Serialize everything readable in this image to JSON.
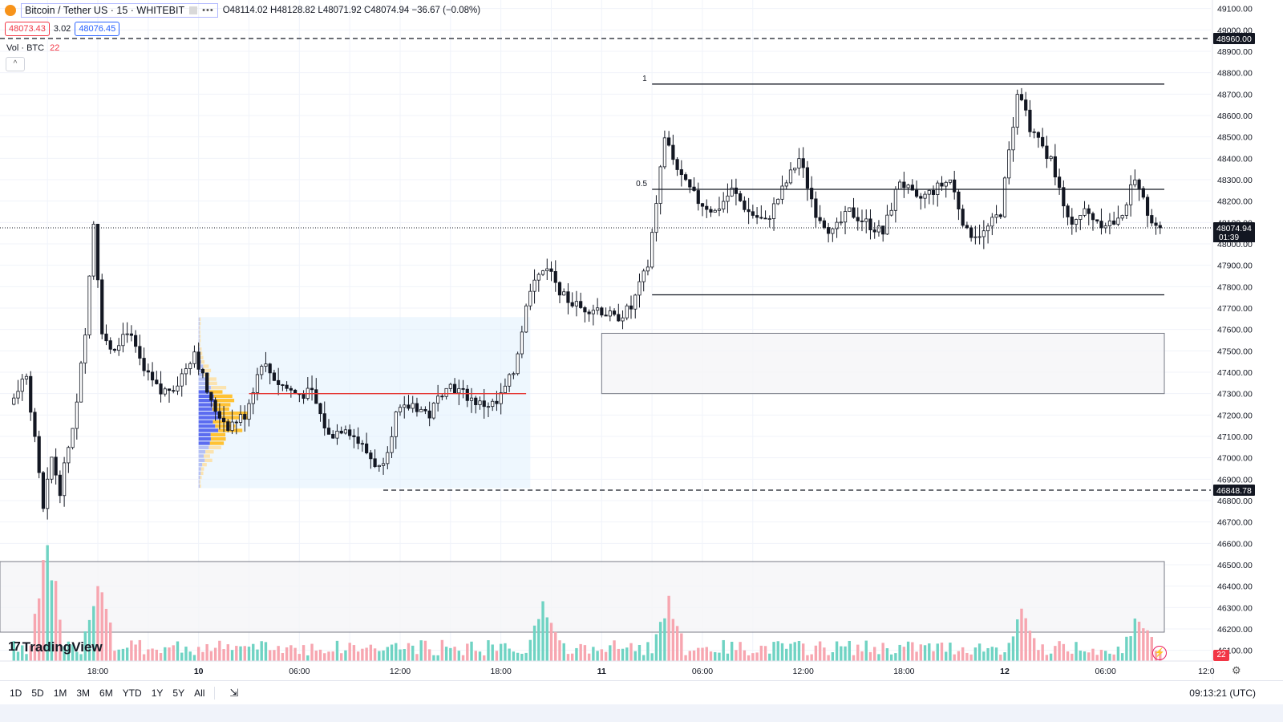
{
  "header": {
    "symbol": "Bitcoin / Tether US · 15 · WHITEBIT",
    "menu_icon": "more-dots-icon",
    "ohlc": "O48114.02 H48128.82 L48071.92 C48074.94 −36.67 (−0.08%)"
  },
  "quotes": {
    "bid": "48073.43",
    "spread": "3.02",
    "ask": "48076.45"
  },
  "volume_indicator": {
    "label": "Vol · BTC",
    "value": "22"
  },
  "price_axis": {
    "ticks": [
      "49100.00",
      "49000.00",
      "48900.00",
      "48800.00",
      "48700.00",
      "48600.00",
      "48500.00",
      "48400.00",
      "48300.00",
      "48200.00",
      "48100.00",
      "48000.00",
      "47900.00",
      "47800.00",
      "47700.00",
      "47600.00",
      "47500.00",
      "47400.00",
      "47300.00",
      "47200.00",
      "47100.00",
      "47000.00",
      "46900.00",
      "46800.00",
      "46700.00",
      "46600.00",
      "46500.00",
      "46400.00",
      "46300.00",
      "46200.00",
      "46100.00"
    ],
    "labels": {
      "top_line": "48960.00",
      "current": "48074.94",
      "countdown": "01:39",
      "low_line": "46848.78"
    }
  },
  "time_axis": {
    "ticks": [
      "18:00",
      "10",
      "06:00",
      "12:00",
      "18:00",
      "11",
      "06:00",
      "12:00",
      "18:00",
      "12",
      "06:00",
      "12:0"
    ]
  },
  "fib_labels": {
    "level_1": "1",
    "level_half": "0.5"
  },
  "volume_badge": "22",
  "bottom_bar": {
    "ranges": [
      "1D",
      "5D",
      "1M",
      "3M",
      "6M",
      "YTD",
      "1Y",
      "5Y",
      "All"
    ],
    "calendar_icon": "calendar-range-icon",
    "clock": "09:13:21 (UTC)"
  },
  "brand": "TradingView",
  "chart_data": {
    "type": "candlestick",
    "title": "Bitcoin / Tether US · 15 · WHITEBIT",
    "interval": "15m",
    "y_range": [
      46050,
      49140
    ],
    "volume_range": [
      0,
      240
    ],
    "grid": true,
    "colors": {
      "up": "#089981",
      "down": "#131722",
      "up_volume": "#6fd3c3",
      "down_volume": "#f7a6b0",
      "profile_up": "#ffc233",
      "profile_down": "#5b6cf0"
    },
    "horizontal_lines": [
      {
        "price": 48960,
        "style": "dashed"
      },
      {
        "price": 46848.78,
        "style": "dashed"
      },
      {
        "price": 48747,
        "style": "solid",
        "fib_level": "1"
      },
      {
        "price": 48255,
        "style": "solid",
        "fib_level": "0.5"
      },
      {
        "price": 47762,
        "style": "solid"
      },
      {
        "price": 48074.94,
        "style": "dotted",
        "label": "last"
      },
      {
        "price": 47300,
        "style": "solid",
        "color": "#e53935",
        "label": "poc"
      }
    ],
    "zones": [
      {
        "price_top": 47582,
        "price_bottom": 47300,
        "from": "11 00:00",
        "to": "12 09:30"
      },
      {
        "price_top": 46515,
        "price_bottom": 46185,
        "from": "09 13:00",
        "to": "12 09:30"
      },
      {
        "price_top": 47658,
        "price_bottom": 46858,
        "from": "10 00:00",
        "to": "10 19:45",
        "type": "volume-profile"
      }
    ],
    "ohlc_path": [
      [
        "09 13:00",
        47250
      ],
      [
        "09 14:00",
        47400
      ],
      [
        "09 15:00",
        46750
      ],
      [
        "09 15:30",
        47000
      ],
      [
        "09 16:00",
        46850
      ],
      [
        "09 17:00",
        47250
      ],
      [
        "09 17:30",
        47600
      ],
      [
        "09 18:00",
        48100
      ],
      [
        "09 18:30",
        47600
      ],
      [
        "09 19:00",
        47500
      ],
      [
        "09 20:00",
        47600
      ],
      [
        "09 21:00",
        47400
      ],
      [
        "09 22:00",
        47300
      ],
      [
        "09 23:00",
        47350
      ],
      [
        "10 00:00",
        47500
      ],
      [
        "10 01:00",
        47250
      ],
      [
        "10 02:00",
        47150
      ],
      [
        "10 03:00",
        47200
      ],
      [
        "10 04:00",
        47450
      ],
      [
        "10 05:00",
        47350
      ],
      [
        "10 06:00",
        47300
      ],
      [
        "10 07:00",
        47300
      ],
      [
        "10 08:00",
        47100
      ],
      [
        "10 09:00",
        47150
      ],
      [
        "10 10:00",
        47050
      ],
      [
        "10 11:00",
        46950
      ],
      [
        "10 11:30",
        47050
      ],
      [
        "10 12:00",
        47200
      ],
      [
        "10 13:00",
        47250
      ],
      [
        "10 14:00",
        47200
      ],
      [
        "10 15:00",
        47350
      ],
      [
        "10 16:00",
        47300
      ],
      [
        "10 17:00",
        47250
      ],
      [
        "10 18:00",
        47250
      ],
      [
        "10 19:00",
        47400
      ],
      [
        "10 20:00",
        47800
      ],
      [
        "10 21:00",
        47900
      ],
      [
        "10 22:00",
        47750
      ],
      [
        "10 23:00",
        47700
      ],
      [
        "11 00:00",
        47700
      ],
      [
        "11 01:00",
        47650
      ],
      [
        "11 02:00",
        47700
      ],
      [
        "11 03:00",
        47900
      ],
      [
        "11 04:00",
        48500
      ],
      [
        "11 05:00",
        48300
      ],
      [
        "11 06:00",
        48200
      ],
      [
        "11 07:00",
        48150
      ],
      [
        "11 08:00",
        48250
      ],
      [
        "11 09:00",
        48150
      ],
      [
        "11 10:00",
        48100
      ],
      [
        "11 11:00",
        48250
      ],
      [
        "11 12:00",
        48400
      ],
      [
        "11 13:00",
        48150
      ],
      [
        "11 14:00",
        48050
      ],
      [
        "11 15:00",
        48150
      ],
      [
        "11 16:00",
        48100
      ],
      [
        "11 17:00",
        48050
      ],
      [
        "11 18:00",
        48300
      ],
      [
        "11 19:00",
        48200
      ],
      [
        "11 20:00",
        48250
      ],
      [
        "11 21:00",
        48300
      ],
      [
        "11 22:00",
        48050
      ],
      [
        "11 23:00",
        48050
      ],
      [
        "12 00:00",
        48150
      ],
      [
        "12 01:00",
        48700
      ],
      [
        "12 02:00",
        48500
      ],
      [
        "12 03:00",
        48400
      ],
      [
        "12 04:00",
        48100
      ],
      [
        "12 05:00",
        48150
      ],
      [
        "12 06:00",
        48100
      ],
      [
        "12 07:00",
        48100
      ],
      [
        "12 08:00",
        48300
      ],
      [
        "12 08:30",
        48200
      ],
      [
        "12 09:15",
        48075
      ]
    ],
    "volume_spikes": [
      [
        "09 15:00",
        185
      ],
      [
        "09 18:00",
        130
      ],
      [
        "10 20:30",
        95
      ],
      [
        "11 04:00",
        95
      ],
      [
        "12 01:00",
        80
      ],
      [
        "12 08:00",
        80
      ]
    ]
  }
}
